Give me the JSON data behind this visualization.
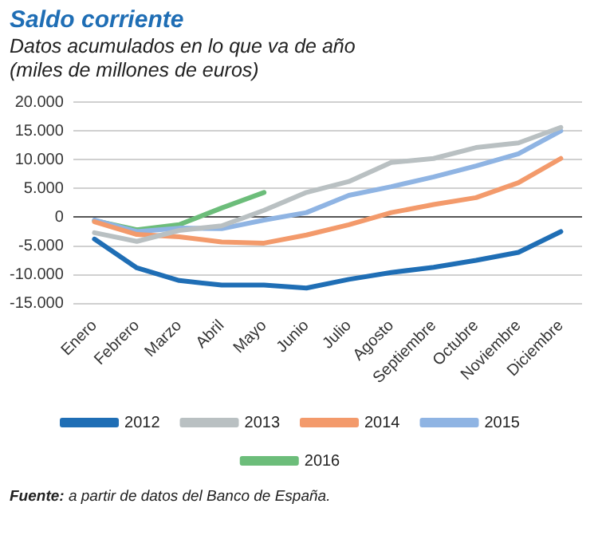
{
  "chart_data": {
    "type": "line",
    "title": "Saldo corriente",
    "subtitle": "Datos acumulados en lo que va de año (miles de millones de euros)",
    "categories": [
      "Enero",
      "Febrero",
      "Marzo",
      "Abril",
      "Mayo",
      "Junio",
      "Julio",
      "Agosto",
      "Septiembre",
      "Octubre",
      "Noviembre",
      "Diciembre"
    ],
    "series": [
      {
        "name": "2012",
        "color": "#1f6eb5",
        "values": [
          -3800,
          -8800,
          -11000,
          -11800,
          -11800,
          -12300,
          -10800,
          -9600,
          -8700,
          -7500,
          -6100,
          -2500
        ]
      },
      {
        "name": "2013",
        "color": "#b9c0c2",
        "values": [
          -2700,
          -4200,
          -2300,
          -1500,
          1200,
          4300,
          6200,
          9500,
          10200,
          12100,
          12900,
          15600
        ]
      },
      {
        "name": "2014",
        "color": "#f39a6b",
        "values": [
          -800,
          -3000,
          -3400,
          -4300,
          -4500,
          -3100,
          -1300,
          800,
          2200,
          3400,
          6000,
          10200
        ]
      },
      {
        "name": "2015",
        "color": "#8fb4e3",
        "values": [
          -500,
          -2500,
          -1900,
          -2000,
          -500,
          800,
          3800,
          5300,
          7000,
          8900,
          11000,
          15000
        ]
      },
      {
        "name": "2016",
        "color": "#6cbd7a",
        "values": [
          -600,
          -2200,
          -1300,
          1600,
          4300,
          null,
          null,
          null,
          null,
          null,
          null,
          null
        ]
      }
    ],
    "ylim": [
      -15000,
      20000
    ],
    "yticks": [
      {
        "value": -15000,
        "label": "-15.000"
      },
      {
        "value": -10000,
        "label": "-10.000"
      },
      {
        "value": -5000,
        "label": "-5.000"
      },
      {
        "value": 0,
        "label": "0"
      },
      {
        "value": 5000,
        "label": "5.000"
      },
      {
        "value": 10000,
        "label": "10.000"
      },
      {
        "value": 15000,
        "label": "15.000"
      },
      {
        "value": 20000,
        "label": "20.000"
      }
    ],
    "grid": "y",
    "legend": "bottom",
    "marker": "none",
    "line_style": "solid",
    "annotations": [
      "Fuente: a partir de datos del Banco de España."
    ]
  }
}
